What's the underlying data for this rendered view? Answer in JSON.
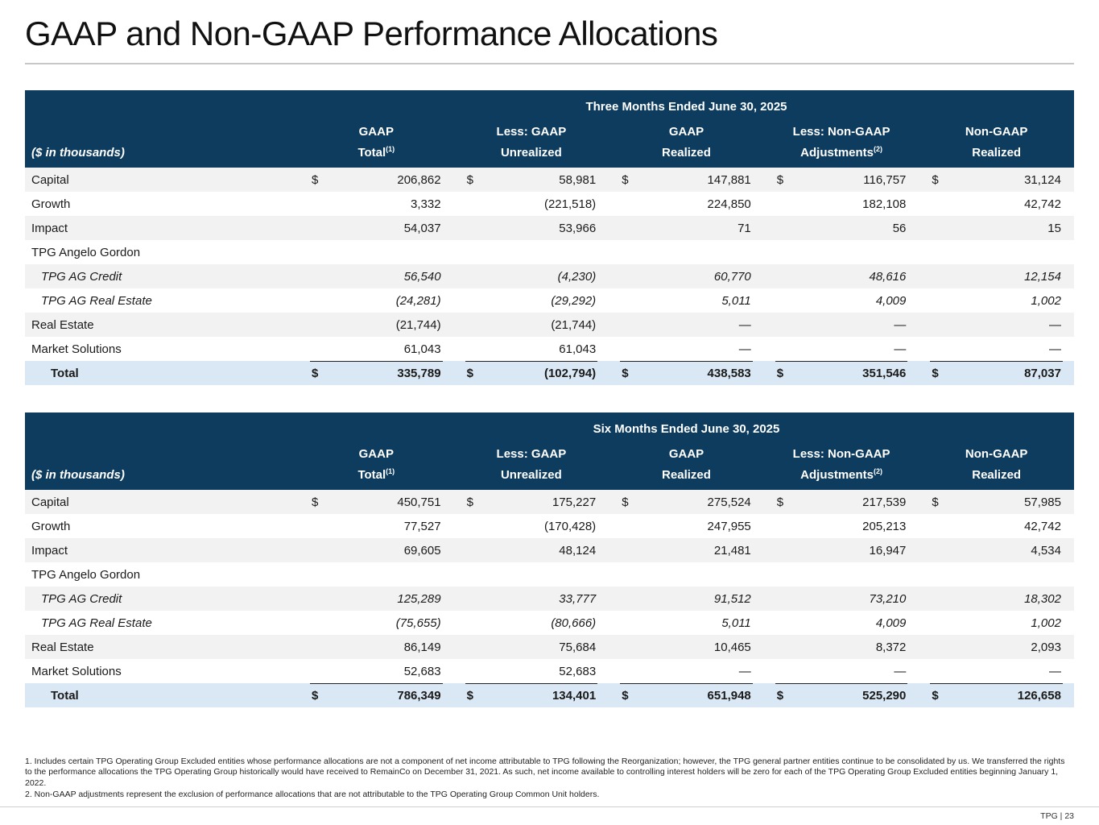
{
  "page": {
    "title": "GAAP and Non-GAAP Performance Allocations",
    "footer_text": "TPG | 23"
  },
  "colors": {
    "header_navy": "#0d3c5f",
    "total_row_blue": "#d9e8f4",
    "stripe_gray": "#f2f2f2"
  },
  "table_columns": {
    "units_label": "($ in thousands)",
    "headers": [
      {
        "line1": "GAAP",
        "line2": "Total",
        "sup": "(1)"
      },
      {
        "line1": "Less: GAAP",
        "line2": "Unrealized",
        "sup": ""
      },
      {
        "line1": "GAAP",
        "line2": "Realized",
        "sup": ""
      },
      {
        "line1": "Less: Non-GAAP",
        "line2": "Adjustments",
        "sup": "(2)"
      },
      {
        "line1": "Non-GAAP",
        "line2": "Realized",
        "sup": ""
      }
    ]
  },
  "tables": [
    {
      "period_title": "Three Months Ended June 30, 2025",
      "rows": [
        {
          "label": "Capital",
          "dollar": true,
          "italic": false,
          "group": false,
          "values": [
            "206,862",
            "58,981",
            "147,881",
            "116,757",
            "31,124"
          ]
        },
        {
          "label": "Growth",
          "dollar": false,
          "italic": false,
          "group": false,
          "values": [
            "3,332",
            "(221,518)",
            "224,850",
            "182,108",
            "42,742"
          ]
        },
        {
          "label": "Impact",
          "dollar": false,
          "italic": false,
          "group": false,
          "values": [
            "54,037",
            "53,966",
            "71",
            "56",
            "15"
          ]
        },
        {
          "label": "TPG Angelo Gordon",
          "dollar": false,
          "italic": false,
          "group": true,
          "values": null
        },
        {
          "label": "TPG AG Credit",
          "dollar": false,
          "italic": true,
          "group": false,
          "values": [
            "56,540",
            "(4,230)",
            "60,770",
            "48,616",
            "12,154"
          ]
        },
        {
          "label": "TPG AG Real Estate",
          "dollar": false,
          "italic": true,
          "group": false,
          "values": [
            "(24,281)",
            "(29,292)",
            "5,011",
            "4,009",
            "1,002"
          ]
        },
        {
          "label": "Real Estate",
          "dollar": false,
          "italic": false,
          "group": false,
          "values": [
            "(21,744)",
            "(21,744)",
            "—",
            "—",
            "—"
          ]
        },
        {
          "label": "Market Solutions",
          "dollar": false,
          "italic": false,
          "group": false,
          "values": [
            "61,043",
            "61,043",
            "—",
            "—",
            "—"
          ]
        }
      ],
      "total": {
        "label": "Total",
        "values": [
          "335,789",
          "(102,794)",
          "438,583",
          "351,546",
          "87,037"
        ]
      }
    },
    {
      "period_title": "Six Months Ended June 30, 2025",
      "rows": [
        {
          "label": "Capital",
          "dollar": true,
          "italic": false,
          "group": false,
          "values": [
            "450,751",
            "175,227",
            "275,524",
            "217,539",
            "57,985"
          ]
        },
        {
          "label": "Growth",
          "dollar": false,
          "italic": false,
          "group": false,
          "values": [
            "77,527",
            "(170,428)",
            "247,955",
            "205,213",
            "42,742"
          ]
        },
        {
          "label": "Impact",
          "dollar": false,
          "italic": false,
          "group": false,
          "values": [
            "69,605",
            "48,124",
            "21,481",
            "16,947",
            "4,534"
          ]
        },
        {
          "label": "TPG Angelo Gordon",
          "dollar": false,
          "italic": false,
          "group": true,
          "values": null
        },
        {
          "label": "TPG AG Credit",
          "dollar": false,
          "italic": true,
          "group": false,
          "values": [
            "125,289",
            "33,777",
            "91,512",
            "73,210",
            "18,302"
          ]
        },
        {
          "label": "TPG AG Real Estate",
          "dollar": false,
          "italic": true,
          "group": false,
          "values": [
            "(75,655)",
            "(80,666)",
            "5,011",
            "4,009",
            "1,002"
          ]
        },
        {
          "label": "Real Estate",
          "dollar": false,
          "italic": false,
          "group": false,
          "values": [
            "86,149",
            "75,684",
            "10,465",
            "8,372",
            "2,093"
          ]
        },
        {
          "label": "Market Solutions",
          "dollar": false,
          "italic": false,
          "group": false,
          "values": [
            "52,683",
            "52,683",
            "—",
            "—",
            "—"
          ]
        }
      ],
      "total": {
        "label": "Total",
        "values": [
          "786,349",
          "134,401",
          "651,948",
          "525,290",
          "126,658"
        ]
      }
    }
  ],
  "footnotes": [
    "1. Includes certain TPG Operating Group Excluded entities whose performance allocations are not a component of net income attributable to TPG following the Reorganization; however, the TPG general partner entities continue to be consolidated by us. We transferred the rights to the performance allocations the TPG Operating Group historically would have received to RemainCo on December 31, 2021. As such, net income available to controlling interest holders will be zero for each of the TPG Operating Group Excluded entities beginning January 1, 2022.",
    "2. Non-GAAP adjustments represent the exclusion of performance allocations that are not attributable to the TPG Operating Group Common Unit holders."
  ]
}
